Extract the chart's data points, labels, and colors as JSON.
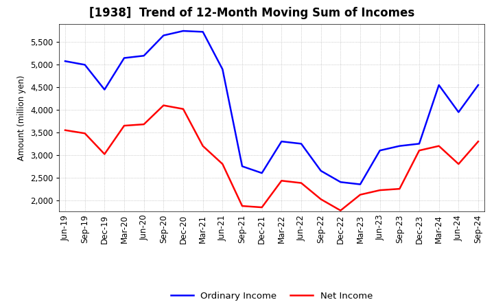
{
  "title": "[1938]  Trend of 12-Month Moving Sum of Incomes",
  "ylabel": "Amount (million yen)",
  "x_labels": [
    "Jun-19",
    "Sep-19",
    "Dec-19",
    "Mar-20",
    "Jun-20",
    "Sep-20",
    "Dec-20",
    "Mar-21",
    "Jun-21",
    "Sep-21",
    "Dec-21",
    "Mar-22",
    "Jun-22",
    "Sep-22",
    "Dec-22",
    "Mar-23",
    "Jun-23",
    "Sep-23",
    "Dec-23",
    "Mar-24",
    "Jun-24",
    "Sep-24"
  ],
  "ordinary_income": [
    5080,
    5000,
    4450,
    5150,
    5200,
    5650,
    5750,
    5730,
    4900,
    2750,
    2600,
    3300,
    3250,
    2650,
    2400,
    2350,
    3100,
    3200,
    3250,
    4550,
    3950,
    4550
  ],
  "net_income": [
    3550,
    3480,
    3020,
    3650,
    3680,
    4100,
    4020,
    3200,
    2800,
    1870,
    1840,
    2430,
    2380,
    2020,
    1770,
    2120,
    2220,
    2250,
    3100,
    3200,
    2800,
    3300
  ],
  "ordinary_color": "#0000ff",
  "net_color": "#ff0000",
  "ylim": [
    1750,
    5900
  ],
  "yticks": [
    2000,
    2500,
    3000,
    3500,
    4000,
    4500,
    5000,
    5500
  ],
  "background_color": "#ffffff",
  "plot_bg_color": "#ffffff",
  "grid_color": "#aaaaaa",
  "title_fontsize": 12,
  "axis_fontsize": 8.5,
  "legend_fontsize": 9.5
}
